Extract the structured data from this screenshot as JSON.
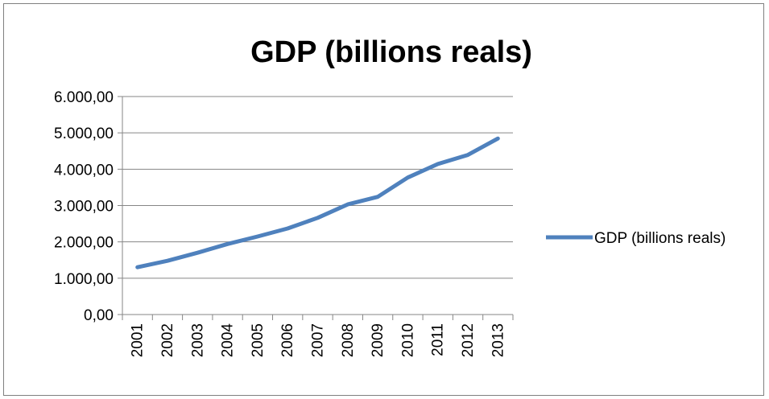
{
  "chart_data": {
    "type": "line",
    "title": "GDP (billions reals)",
    "xlabel": "",
    "ylabel": "",
    "categories": [
      "2001",
      "2002",
      "2003",
      "2004",
      "2005",
      "2006",
      "2007",
      "2008",
      "2009",
      "2010",
      "2011",
      "2012",
      "2013"
    ],
    "series": [
      {
        "name": "GDP (billions reals)",
        "color": "#4f81bd",
        "values": [
          1302,
          1478,
          1700,
          1941,
          2147,
          2369,
          2661,
          3032,
          3239,
          3770,
          4143,
          4392,
          4844
        ]
      }
    ],
    "ylim": [
      0,
      6000
    ],
    "yticks": [
      0,
      1000,
      2000,
      3000,
      4000,
      5000,
      6000
    ],
    "ytick_labels": [
      "0,00",
      "1.000,00",
      "2.000,00",
      "3.000,00",
      "4.000,00",
      "5.000,00",
      "6.000,00"
    ],
    "grid": true,
    "legend_position": "right",
    "gridline_color": "#868686"
  }
}
